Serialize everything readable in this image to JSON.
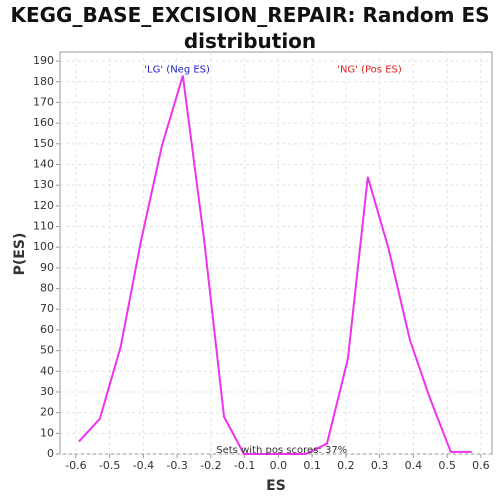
{
  "chart_data": {
    "type": "line",
    "title": "KEGG_BASE_EXCISION_REPAIR: Random ES distribution",
    "x_label": "ES",
    "y_label": "P(ES)",
    "x": [
      -0.591,
      -0.529,
      -0.467,
      -0.407,
      -0.345,
      -0.283,
      -0.221,
      -0.161,
      -0.102,
      -0.041,
      0.02,
      0.082,
      0.144,
      0.206,
      0.265,
      0.327,
      0.39,
      0.449,
      0.511,
      0.573
    ],
    "series": [
      {
        "name": "P(ES)",
        "color": "#ee33ee",
        "values": [
          6,
          17,
          52,
          103,
          149,
          183,
          105,
          18,
          0,
          0,
          0,
          0,
          5,
          46,
          134,
          99,
          55,
          27,
          1,
          1
        ]
      }
    ],
    "xlim": [
      -0.647,
      0.633
    ],
    "ylim": [
      0,
      194.4
    ],
    "xticks": [
      -0.6,
      -0.5,
      -0.4,
      -0.3,
      -0.2,
      -0.1,
      {
        "value": 0,
        "label": "0.0"
      },
      0.1,
      0.2,
      0.3,
      0.4,
      0.5,
      0.6
    ],
    "yticks": [
      0,
      10,
      20,
      30,
      40,
      50,
      60,
      70,
      80,
      90,
      100,
      110,
      120,
      130,
      140,
      150,
      160,
      170,
      180,
      190
    ],
    "grid": true,
    "annotations": [
      {
        "text": "'LG' (Neg ES)",
        "color": "#2222cc",
        "x": -0.3,
        "y": 186
      },
      {
        "text": "'NG' (Pos ES)",
        "color": "#dd2222",
        "x": 0.27,
        "y": 186
      },
      {
        "text": "Sets with pos scores: 37%",
        "color": "#333333",
        "x": 0.01,
        "y": 2
      }
    ]
  }
}
